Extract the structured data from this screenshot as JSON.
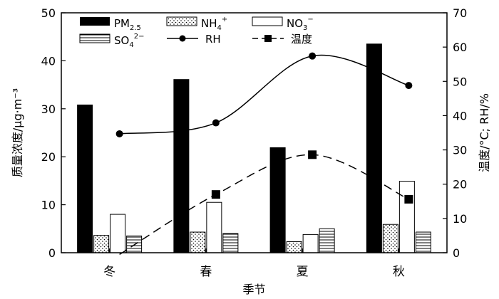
{
  "chart_data": {
    "type": "bar",
    "categories": [
      "冬",
      "春",
      "夏",
      "秋"
    ],
    "xlabel": "季节",
    "ylabel_left": "质量浓度/μg·m⁻³",
    "ylabel_right": "温度/°C; RH/%",
    "ylim_left": [
      0,
      50
    ],
    "ylim_right": [
      0,
      70
    ],
    "yticks_left": [
      "0",
      "10",
      "20",
      "30",
      "40",
      "50"
    ],
    "yticks_right": [
      "0",
      "10",
      "20",
      "30",
      "40",
      "50",
      "60",
      "70"
    ],
    "grid": false,
    "legend_position": "top-left",
    "bar_series": [
      {
        "name": "PM2.5",
        "values": [
          30.8,
          36.1,
          21.9,
          43.5
        ]
      },
      {
        "name": "NH4+",
        "values": [
          3.6,
          4.3,
          2.3,
          5.9
        ]
      },
      {
        "name": "NO3−",
        "values": [
          8.0,
          10.5,
          3.8,
          14.9
        ]
      },
      {
        "name": "SO42−",
        "values": [
          3.5,
          4.0,
          5.0,
          4.3
        ]
      }
    ],
    "line_series": [
      {
        "name": "RH",
        "axis": "right",
        "values": [
          34.7,
          37.9,
          57.4,
          48.8
        ]
      },
      {
        "name": "温度",
        "axis": "right",
        "values": [
          -0.5,
          17.0,
          28.6,
          15.6
        ]
      }
    ],
    "legend": {
      "pm_base": "PM",
      "pm_sub": "2.5",
      "nh_base": "NH",
      "nh_sub": "4",
      "nh_sup": "+",
      "no_base": "NO",
      "no_sub": "3",
      "no_sup": "−",
      "so_base": "SO",
      "so_sub": "4",
      "so_sup": "2−",
      "rh": "RH",
      "temp": "温度"
    }
  }
}
